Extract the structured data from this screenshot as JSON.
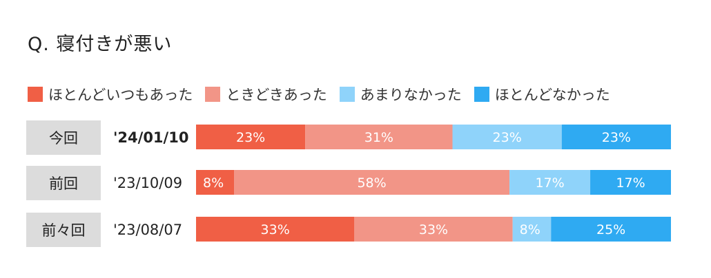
{
  "title": "Q. 寝付きが悪い",
  "colors": {
    "ほとんどいつもあった": "#f05f45",
    "ときどきあった": "#f29587",
    "あまりなかった": "#8fd3fa",
    "ほとんどなかった": "#2faaf2"
  },
  "chart_data": {
    "type": "bar",
    "orientation": "horizontal",
    "stacked": true,
    "title": "Q. 寝付きが悪い",
    "legend": "top",
    "legend_entries": [
      "ほとんどいつもあった",
      "ときどきあった",
      "あまりなかった",
      "ほとんどなかった"
    ],
    "categories": [
      {
        "label": "今回",
        "date": "'24/01/10"
      },
      {
        "label": "前回",
        "date": "'23/10/09"
      },
      {
        "label": "前々回",
        "date": "'23/08/07"
      }
    ],
    "series": [
      {
        "name": "ほとんどいつもあった",
        "values": [
          23,
          8,
          33
        ],
        "labels": [
          "23%",
          "8%",
          "33%"
        ]
      },
      {
        "name": "ときどきあった",
        "values": [
          31,
          58,
          33
        ],
        "labels": [
          "31%",
          "58%",
          "33%"
        ]
      },
      {
        "name": "あまりなかった",
        "values": [
          23,
          17,
          8
        ],
        "labels": [
          "23%",
          "17%",
          "8%"
        ]
      },
      {
        "name": "ほとんどなかった",
        "values": [
          23,
          17,
          25
        ],
        "labels": [
          "23%",
          "17%",
          "25%"
        ]
      }
    ],
    "unit": "%"
  }
}
